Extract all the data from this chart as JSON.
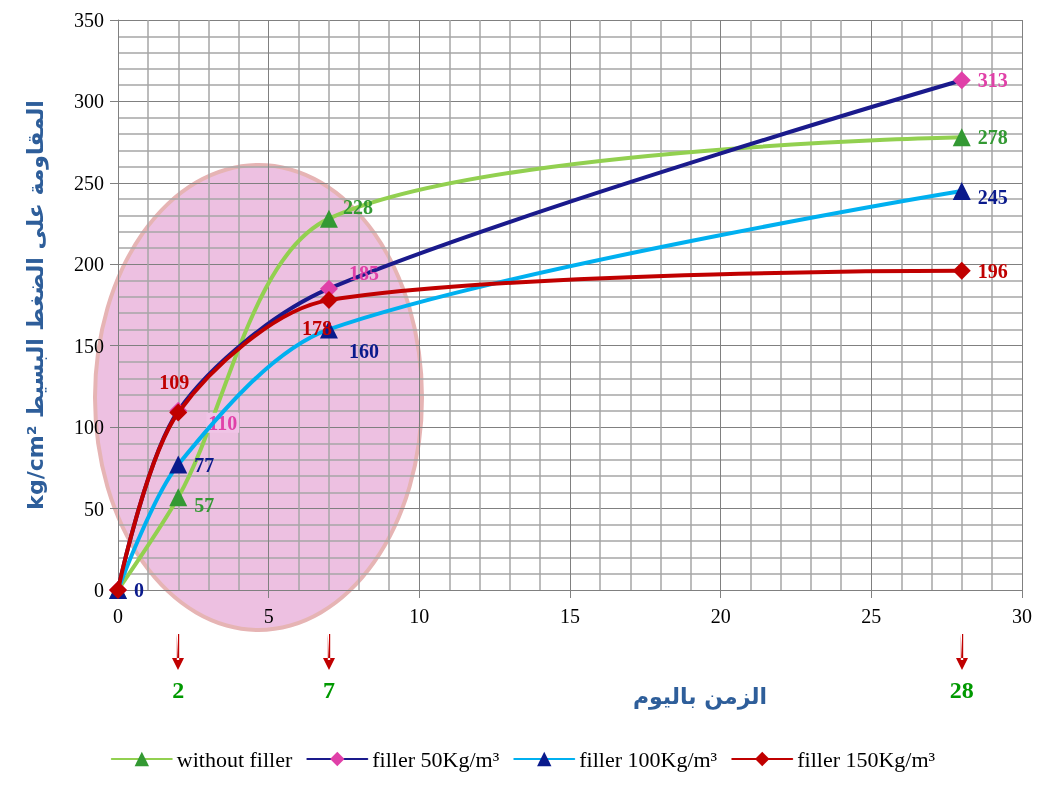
{
  "chart_data": {
    "type": "line",
    "xlabel": "الزمن باليوم",
    "ylabel": "kg/cm² المقاومة على الضغط البسيط",
    "x": [
      0,
      2,
      7,
      28
    ],
    "xlim": [
      0,
      30
    ],
    "xticks": [
      0,
      5,
      10,
      15,
      20,
      25,
      30
    ],
    "ylim": [
      0,
      350
    ],
    "yticks": [
      0,
      50,
      100,
      150,
      200,
      250,
      300,
      350
    ],
    "grid": true,
    "legend": "bottom",
    "line_style": "solid",
    "series": [
      {
        "name": "without filler",
        "color": "#92d050",
        "marker": "triangle",
        "colors": [
          "#339933",
          "#339933",
          "#339933",
          "#339933"
        ],
        "values": [
          0,
          57,
          228,
          278
        ],
        "value_labels": [
          null,
          "57",
          "228",
          "278"
        ]
      },
      {
        "name": "filler 50Kg/m³",
        "color": "#1a1a8c",
        "marker": "diamond",
        "colors": [
          "#e040a8",
          "#e040a8",
          "#e040a8",
          "#e040a8"
        ],
        "values": [
          0,
          110,
          185,
          313
        ],
        "value_labels": [
          null,
          "110",
          "185",
          "313"
        ]
      },
      {
        "name": "filler 100Kg/m³",
        "color": "#00b0f0",
        "marker": "triangle",
        "colors": [
          "#0a1a8c",
          "#0a1a8c",
          "#0a1a8c",
          "#0a1a8c"
        ],
        "values": [
          0,
          77,
          160,
          245
        ],
        "value_labels": [
          "0",
          "77",
          "160",
          "245"
        ]
      },
      {
        "name": "filler 150Kg/m³",
        "color": "#c00000",
        "marker": "diamond",
        "colors": [
          "#c00000",
          "#c00000",
          "#c00000",
          "#c00000"
        ],
        "values": [
          0,
          109,
          178,
          196
        ],
        "value_labels": [
          null,
          "109",
          "178",
          "196"
        ]
      }
    ],
    "annotations": [
      "2",
      "7",
      "28"
    ]
  }
}
